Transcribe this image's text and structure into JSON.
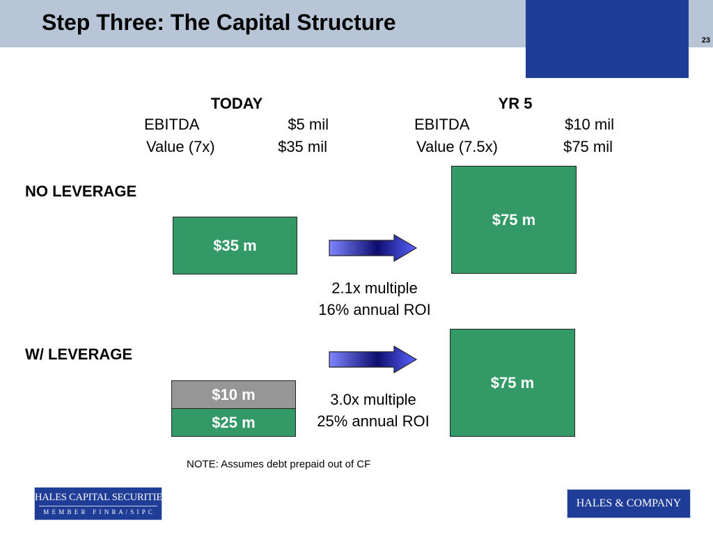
{
  "header": {
    "title": "Step Three:  The Capital Structure",
    "page_number": "23"
  },
  "today": {
    "heading": "TODAY",
    "rows": [
      {
        "label": "EBITDA",
        "value": "$5 mil"
      },
      {
        "label": "Value (7x)",
        "value": "$35 mil"
      }
    ]
  },
  "yr5": {
    "heading": "YR 5",
    "rows": [
      {
        "label": "EBITDA",
        "value": "$10 mil"
      },
      {
        "label": "Value (7.5x)",
        "value": "$75 mil"
      }
    ]
  },
  "no_leverage": {
    "label": "NO LEVERAGE",
    "today_box": "$35 m",
    "yr5_box": "$75 m",
    "caption": [
      "2.1x multiple",
      "16% annual ROI"
    ]
  },
  "with_leverage": {
    "label": "W/ LEVERAGE",
    "debt_box": "$10 m",
    "equity_box": "$25 m",
    "yr5_box": "$75 m",
    "caption": [
      "3.0x multiple",
      "25% annual ROI"
    ]
  },
  "note": "NOTE: Assumes debt prepaid out of CF",
  "logos": {
    "left": {
      "line1": "HALES CAPITAL SECURITIES",
      "line2": "M E M B E R   F I N R A / S I P C"
    },
    "right": {
      "text": "HALES & COMPANY"
    }
  },
  "colors": {
    "header_band": "#b7c5d6",
    "header_block": "#1f3d96",
    "box_green": "#339966",
    "box_grey": "#969696",
    "arrow": "#4a52d8"
  }
}
